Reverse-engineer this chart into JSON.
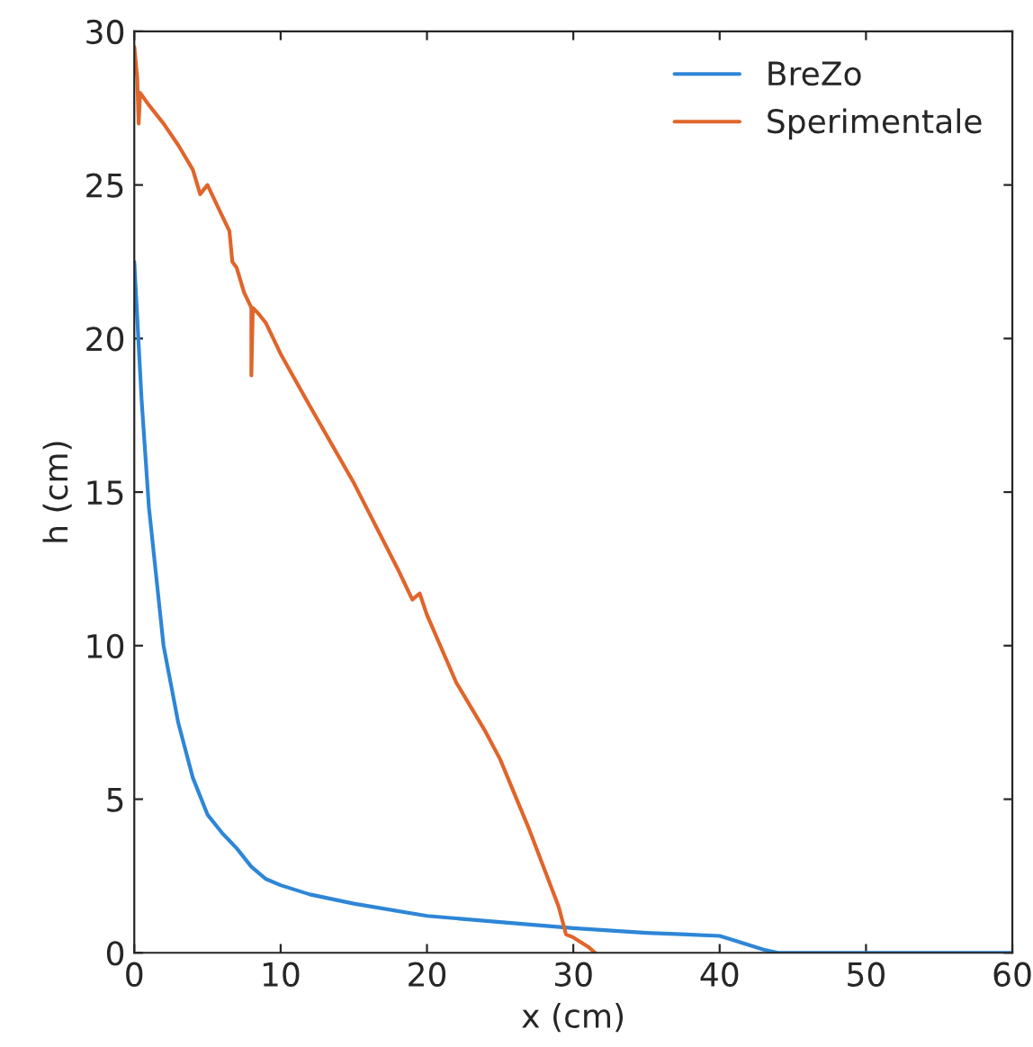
{
  "chart_data": {
    "type": "line",
    "xlabel": "x (cm)",
    "ylabel": "h (cm)",
    "xlim": [
      0,
      60
    ],
    "ylim": [
      0,
      30
    ],
    "xticks": [
      0,
      10,
      20,
      30,
      40,
      50,
      60
    ],
    "yticks": [
      0,
      5,
      10,
      15,
      20,
      25,
      30
    ],
    "grid": false,
    "legend": "top right",
    "series": [
      {
        "name": "BreZo",
        "color": "#2e86d6",
        "x": [
          0,
          0.5,
          1,
          2,
          3,
          4,
          5,
          6,
          7,
          8,
          9,
          10,
          12,
          15,
          20,
          25,
          30,
          35,
          40,
          41,
          43,
          44,
          60
        ],
        "values": [
          22.5,
          18,
          14.5,
          10,
          7.5,
          5.7,
          4.5,
          3.9,
          3.4,
          2.8,
          2.4,
          2.2,
          1.9,
          1.6,
          1.2,
          1.0,
          0.8,
          0.65,
          0.55,
          0.4,
          0.1,
          0,
          0
        ]
      },
      {
        "name": "Sperimentale",
        "color": "#e0652b",
        "x": [
          0,
          0.2,
          0.3,
          0.4,
          1,
          2,
          3,
          4,
          4.5,
          5,
          6,
          6.5,
          6.7,
          7,
          7.5,
          8,
          8,
          8.1,
          8.5,
          9,
          10,
          12,
          15,
          18,
          19,
          19.5,
          20,
          22,
          24,
          25,
          27,
          29,
          29.5,
          30,
          31,
          31.5
        ],
        "values": [
          29.5,
          28.5,
          27,
          28,
          27.6,
          27,
          26.3,
          25.5,
          24.7,
          25,
          24,
          23.5,
          22.5,
          22.3,
          21.5,
          21,
          18.8,
          21,
          20.8,
          20.5,
          19.5,
          17.8,
          15.3,
          12.5,
          11.5,
          11.7,
          11,
          8.8,
          7.2,
          6.3,
          4,
          1.5,
          0.6,
          0.5,
          0.2,
          0
        ]
      }
    ]
  }
}
